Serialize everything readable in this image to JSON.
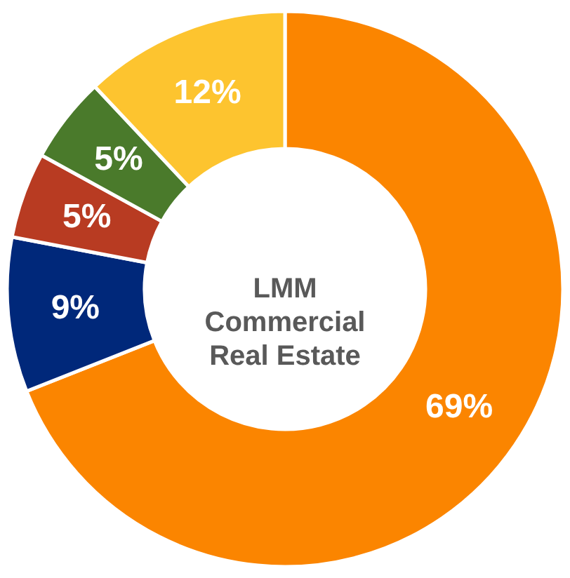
{
  "chart_data": {
    "type": "donut",
    "categories": [
      null,
      null,
      null,
      null,
      null
    ],
    "values": [
      69,
      9,
      5,
      5,
      12
    ],
    "colors": [
      "#fb8500",
      "#00287a",
      "#b83b22",
      "#4a7a2b",
      "#fdc42f"
    ],
    "value_labels": [
      "69%",
      "9%",
      "5%",
      "5%",
      "12%"
    ],
    "annotations": [
      "LMM\nCommercial\nReal Estate"
    ],
    "legend": false
  }
}
